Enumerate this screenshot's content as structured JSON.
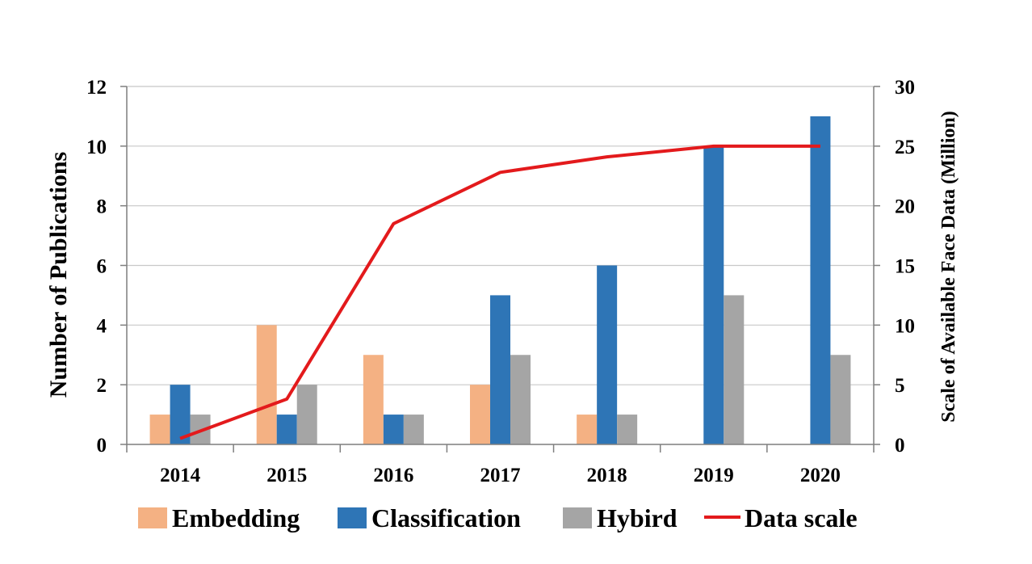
{
  "chart_data": {
    "type": "bar",
    "categories": [
      "2014",
      "2015",
      "2016",
      "2017",
      "2018",
      "2019",
      "2020"
    ],
    "series": [
      {
        "name": "Embedding",
        "values": [
          1,
          4,
          3,
          2,
          1,
          0,
          0
        ],
        "color": "#F4B183"
      },
      {
        "name": "Classification",
        "values": [
          2,
          1,
          1,
          5,
          6,
          10,
          11
        ],
        "color": "#2E75B6"
      },
      {
        "name": "Hybird",
        "values": [
          1,
          2,
          1,
          3,
          1,
          5,
          3
        ],
        "color": "#A5A5A5"
      }
    ],
    "line_series": {
      "name": "Data scale",
      "axis": "right",
      "values": [
        0.5,
        3.8,
        18.5,
        22.8,
        24.1,
        25,
        25
      ],
      "color": "#E31A1C"
    },
    "ylabel": "Number of Publications",
    "y2label": "Scale of Available Face Data (Million)",
    "ylim": [
      0,
      12
    ],
    "y2lim": [
      0,
      30
    ],
    "yticks": [
      "0",
      "2",
      "4",
      "6",
      "8",
      "10",
      "12"
    ],
    "y2ticks": [
      "0",
      "5",
      "10",
      "15",
      "20",
      "25",
      "30"
    ],
    "grid": true,
    "legend_position": "bottom",
    "legend": [
      "Embedding",
      "Classification",
      "Hybird",
      "Data scale"
    ]
  }
}
